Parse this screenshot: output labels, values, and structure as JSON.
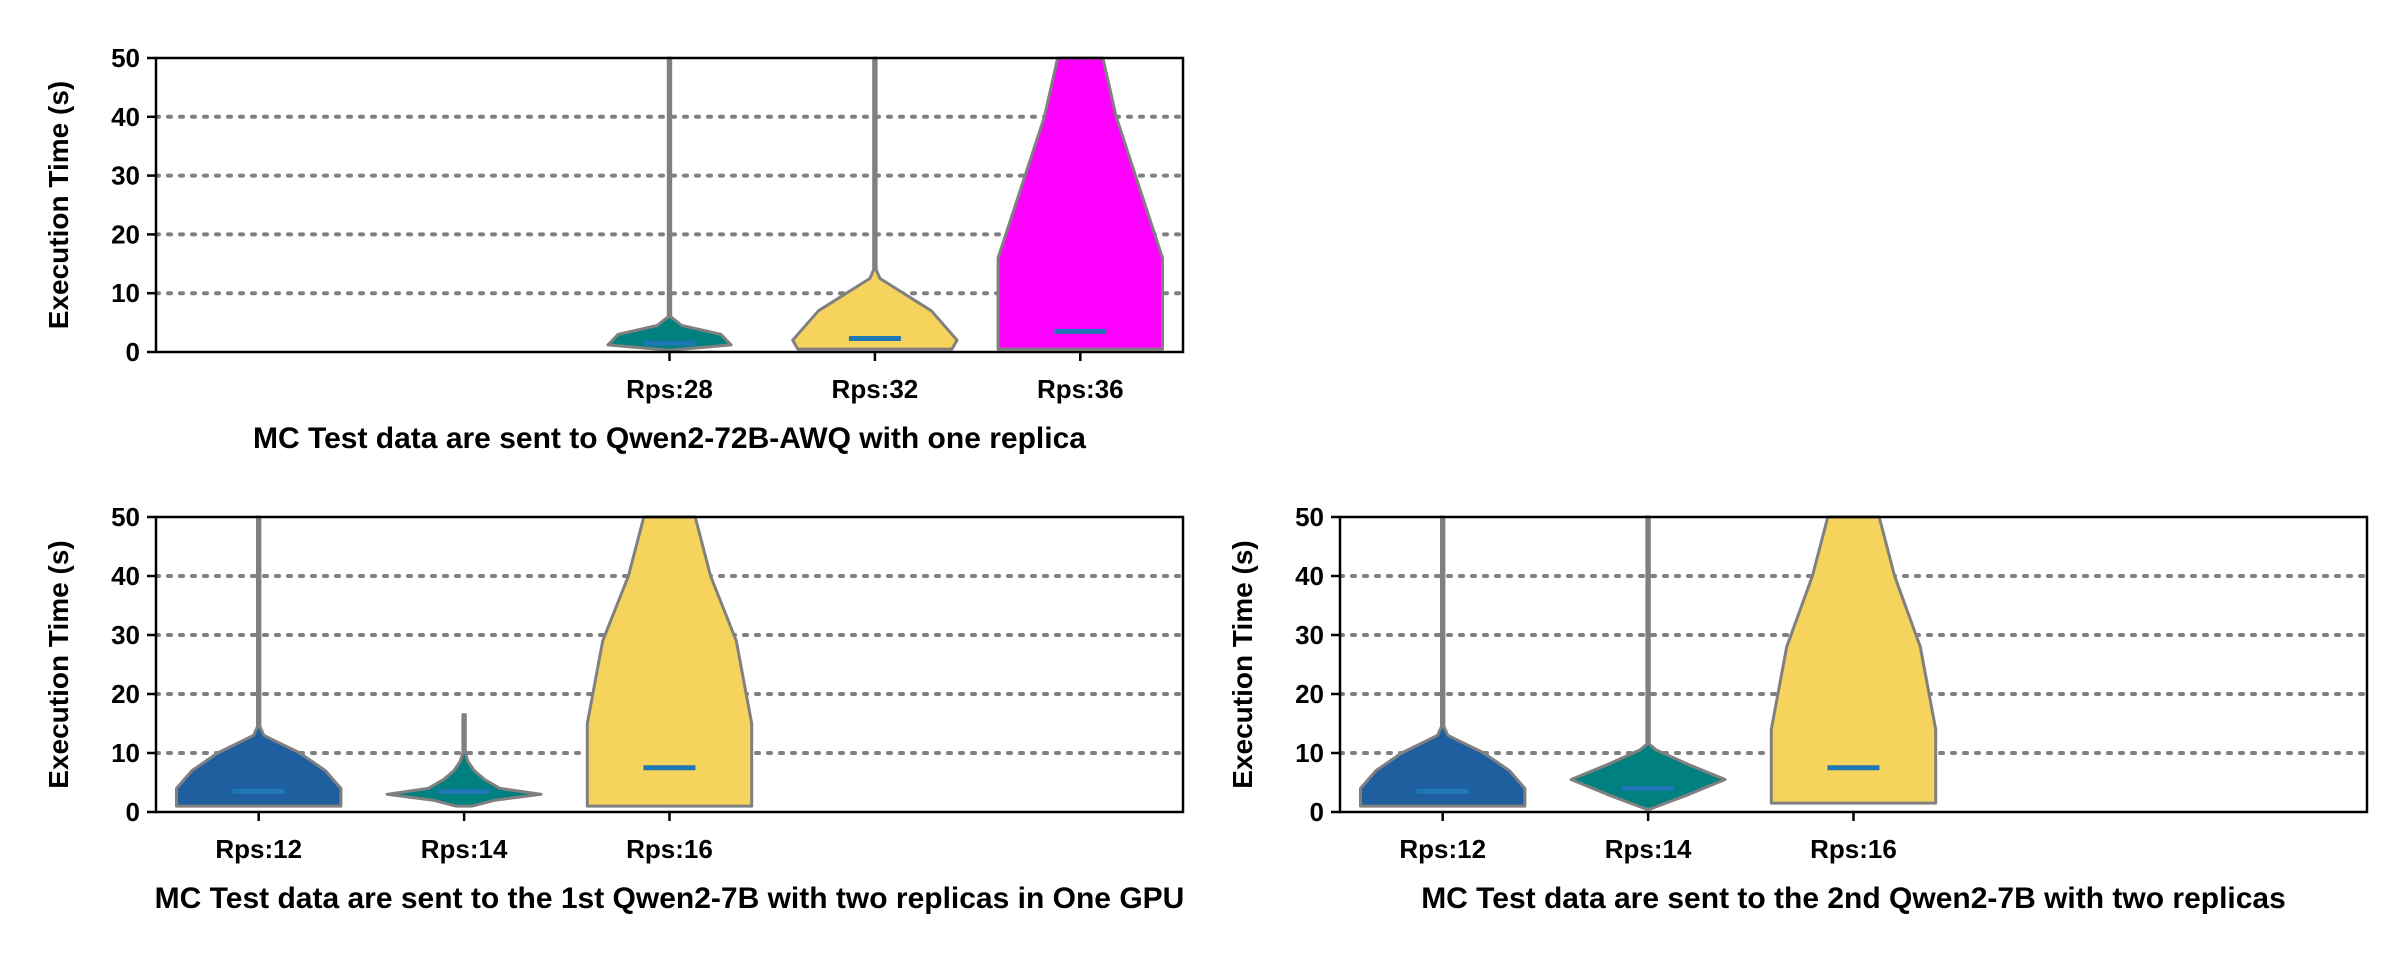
{
  "colors": {
    "outline": "#808080",
    "grid": "#808080",
    "median": "#1f77b4",
    "blue": "#1f5fa0",
    "teal": "#00807f",
    "yellow": "#f5d35c",
    "magenta": "#ff00ff"
  },
  "chart_data": [
    {
      "type": "violin",
      "title": "MC Test data are sent to Qwen2-72B-AWQ with one replica",
      "ylabel": "Execution Time (s)",
      "ylim": [
        0,
        50
      ],
      "yticks": [
        0,
        10,
        20,
        30,
        40,
        50
      ],
      "grid": "horizontal dotted at 10, 20, 30, 40",
      "categories": [
        "",
        "",
        "Rps:28",
        "Rps:32",
        "Rps:36"
      ],
      "series": [
        {
          "category": "Rps:28",
          "color": "teal",
          "median": 1.5,
          "profile": [
            [
              0.3,
              0
            ],
            [
              1.2,
              0.6
            ],
            [
              3,
              0.5
            ],
            [
              4.5,
              0.12
            ],
            [
              6,
              0.012
            ],
            [
              50,
              0.012
            ]
          ]
        },
        {
          "category": "Rps:32",
          "color": "yellow",
          "median": 2.3,
          "profile": [
            [
              0.5,
              0.75
            ],
            [
              2,
              0.8
            ],
            [
              7,
              0.55
            ],
            [
              12.5,
              0.05
            ],
            [
              14,
              0.012
            ],
            [
              50,
              0.012
            ]
          ]
        },
        {
          "category": "Rps:36",
          "color": "magenta",
          "median": 3.5,
          "profile": [
            [
              0.5,
              0.8
            ],
            [
              16,
              0.8
            ],
            [
              40,
              0.35
            ],
            [
              50,
              0.22
            ]
          ]
        }
      ]
    },
    {
      "type": "violin",
      "title": "MC Test data are sent to the 1st Qwen2-7B with two replicas in One GPU",
      "ylabel": "Execution Time (s)",
      "ylim": [
        0,
        50
      ],
      "yticks": [
        0,
        10,
        20,
        30,
        40,
        50
      ],
      "grid": "horizontal dotted at 10, 20, 30, 40",
      "categories": [
        "Rps:12",
        "Rps:14",
        "Rps:16",
        "",
        ""
      ],
      "series": [
        {
          "category": "Rps:12",
          "color": "blue",
          "median": 3.5,
          "profile": [
            [
              1,
              0.8
            ],
            [
              4,
              0.8
            ],
            [
              7,
              0.65
            ],
            [
              10,
              0.4
            ],
            [
              13,
              0.05
            ],
            [
              14.5,
              0.012
            ],
            [
              50,
              0.012
            ]
          ]
        },
        {
          "category": "Rps:14",
          "color": "teal",
          "median": 3.5,
          "profile": [
            [
              1,
              0.08
            ],
            [
              2,
              0.3
            ],
            [
              3,
              0.75
            ],
            [
              4,
              0.35
            ],
            [
              5.5,
              0.2
            ],
            [
              7,
              0.1
            ],
            [
              8.5,
              0.04
            ],
            [
              10,
              0.012
            ],
            [
              16.5,
              0.012
            ]
          ]
        },
        {
          "category": "Rps:16",
          "color": "yellow",
          "median": 7.5,
          "profile": [
            [
              1,
              0.8
            ],
            [
              15,
              0.8
            ],
            [
              29,
              0.65
            ],
            [
              40,
              0.4
            ],
            [
              50,
              0.25
            ]
          ]
        }
      ]
    },
    {
      "type": "violin",
      "title": "MC Test data are sent to the 2nd Qwen2-7B with two replicas",
      "ylabel": "Execution Time (s)",
      "ylim": [
        0,
        50
      ],
      "yticks": [
        0,
        10,
        20,
        30,
        40,
        50
      ],
      "grid": "horizontal dotted at 10, 20, 30, 40",
      "categories": [
        "Rps:12",
        "Rps:14",
        "Rps:16",
        "",
        ""
      ],
      "series": [
        {
          "category": "Rps:12",
          "color": "blue",
          "median": 3.5,
          "profile": [
            [
              1,
              0.8
            ],
            [
              4,
              0.8
            ],
            [
              7,
              0.65
            ],
            [
              10,
              0.4
            ],
            [
              13,
              0.05
            ],
            [
              14.5,
              0.012
            ],
            [
              50,
              0.012
            ]
          ]
        },
        {
          "category": "Rps:14",
          "color": "teal",
          "median": 4,
          "profile": [
            [
              0.5,
              0.02
            ],
            [
              3,
              0.4
            ],
            [
              5.5,
              0.75
            ],
            [
              8,
              0.4
            ],
            [
              10.5,
              0.08
            ],
            [
              11.5,
              0.012
            ],
            [
              50,
              0.012
            ]
          ]
        },
        {
          "category": "Rps:16",
          "color": "yellow",
          "median": 7.5,
          "profile": [
            [
              1.5,
              0.8
            ],
            [
              14,
              0.8
            ],
            [
              28,
              0.65
            ],
            [
              40,
              0.4
            ],
            [
              50,
              0.25
            ]
          ]
        }
      ]
    }
  ]
}
